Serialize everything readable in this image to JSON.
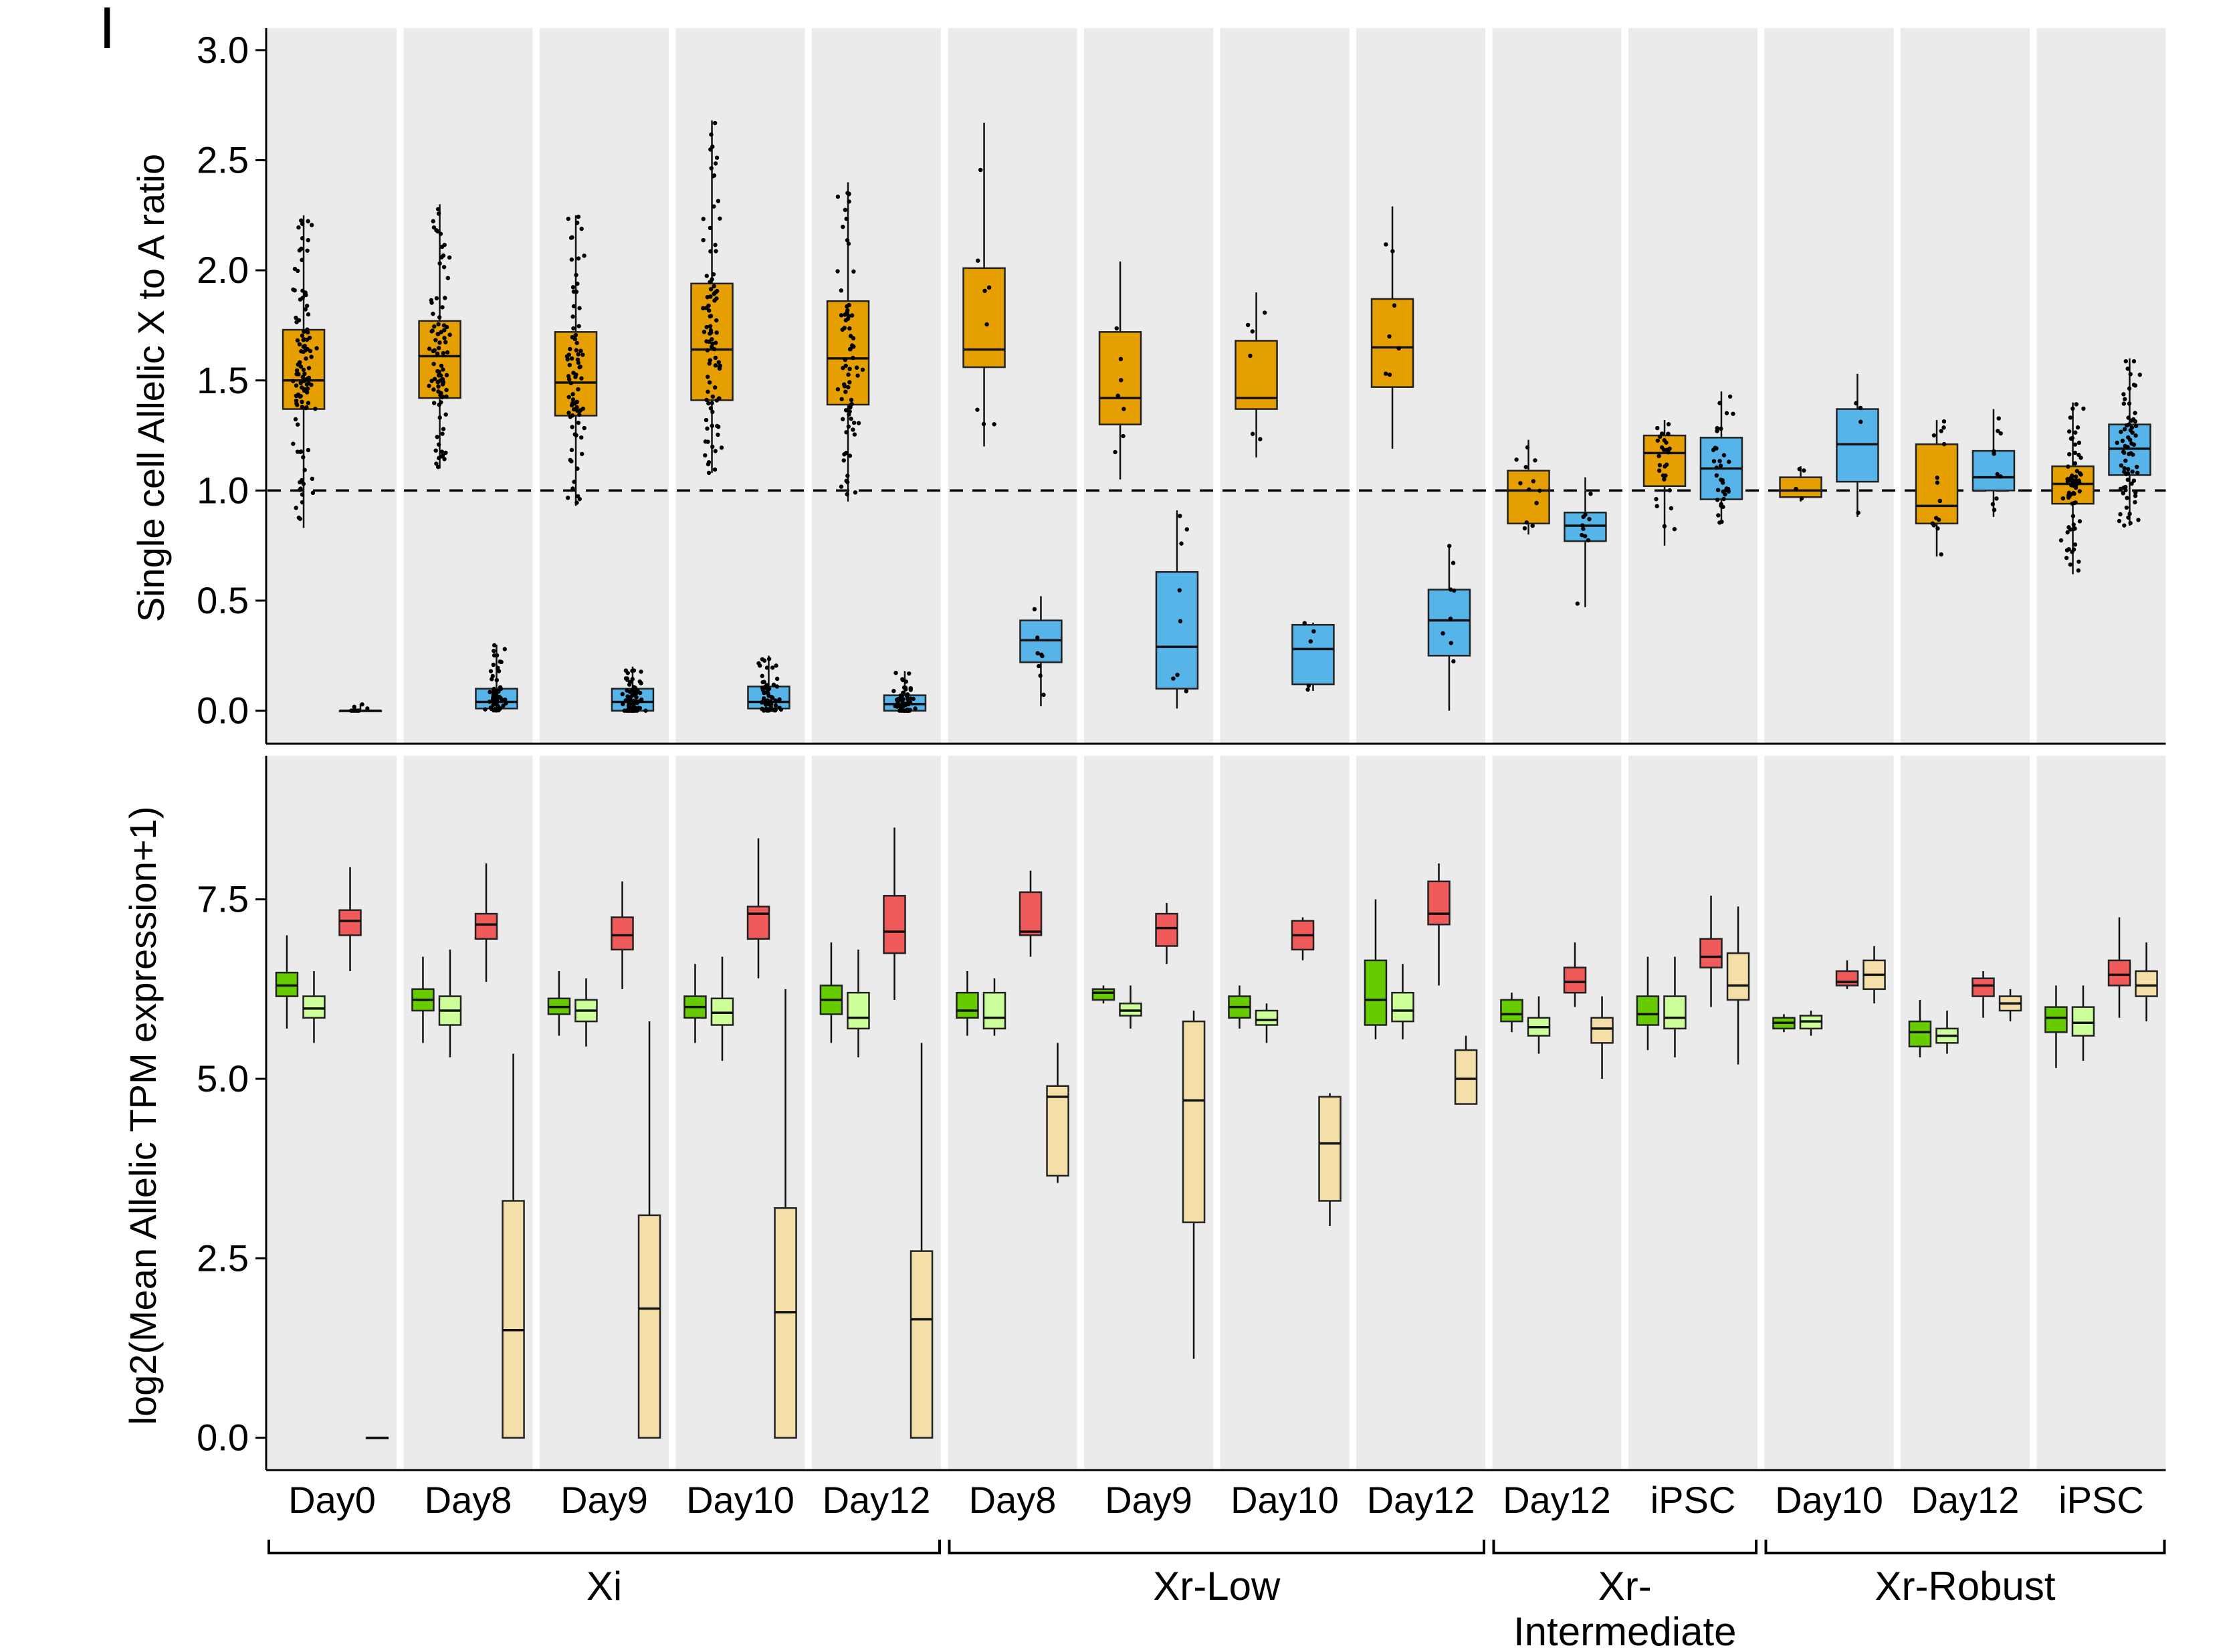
{
  "panel_label": "I",
  "colors": {
    "panel_bg": "#ebebeb",
    "xi_box": "#e69f00",
    "xa_box": "#56b4e9",
    "gene_green_dark": "#66cc00",
    "gene_green_light": "#ccff99",
    "gene_red": "#f05a5a",
    "gene_tan": "#f5dfa8"
  },
  "groups": [
    {
      "label": "Xi",
      "lines": [
        "Xi"
      ],
      "first_panel": 0,
      "last_panel": 4
    },
    {
      "label": "Xr-Low",
      "lines": [
        "Xr-Low"
      ],
      "first_panel": 5,
      "last_panel": 8
    },
    {
      "label": "Xr-Intermediate",
      "lines": [
        "Xr-",
        "Intermediate"
      ],
      "first_panel": 9,
      "last_panel": 10
    },
    {
      "label": "Xr-Robust",
      "lines": [
        "Xr-Robust"
      ],
      "first_panel": 11,
      "last_panel": 13
    }
  ],
  "chart_data": [
    {
      "type": "box",
      "ylabel": "Single cell Allelic X to A ratio",
      "ylim": [
        -0.15,
        3.1
      ],
      "yticks": [
        "0.0",
        "0.5",
        "1.0",
        "1.5",
        "2.0",
        "2.5",
        "3.0"
      ],
      "reference_line": 1.0,
      "grid": false,
      "categories": [
        "Day0",
        "Day8",
        "Day9",
        "Day10",
        "Day12",
        "Day8",
        "Day9",
        "Day10",
        "Day12",
        "Day12",
        "iPSC",
        "Day10",
        "Day12",
        "iPSC"
      ],
      "series": [
        {
          "color_key": "xi_box",
          "boxes": [
            {
              "whislo": 0.83,
              "q1": 1.37,
              "med": 1.5,
              "q3": 1.73,
              "whishi": 2.25,
              "n": 110
            },
            {
              "whislo": 1.1,
              "q1": 1.42,
              "med": 1.61,
              "q3": 1.77,
              "whishi": 2.3,
              "n": 90
            },
            {
              "whislo": 0.93,
              "q1": 1.34,
              "med": 1.49,
              "q3": 1.72,
              "whishi": 2.25,
              "n": 80
            },
            {
              "whislo": 1.08,
              "q1": 1.41,
              "med": 1.64,
              "q3": 1.94,
              "whishi": 2.68,
              "n": 90
            },
            {
              "whislo": 0.95,
              "q1": 1.39,
              "med": 1.6,
              "q3": 1.86,
              "whishi": 2.4,
              "n": 75
            },
            {
              "whislo": 1.2,
              "q1": 1.56,
              "med": 1.64,
              "q3": 2.01,
              "whishi": 2.67,
              "n": 8
            },
            {
              "whislo": 1.05,
              "q1": 1.3,
              "med": 1.42,
              "q3": 1.72,
              "whishi": 2.04,
              "n": 7
            },
            {
              "whislo": 1.15,
              "q1": 1.37,
              "med": 1.42,
              "q3": 1.68,
              "whishi": 1.9,
              "n": 6
            },
            {
              "whislo": 1.19,
              "q1": 1.47,
              "med": 1.65,
              "q3": 1.87,
              "whishi": 2.29,
              "n": 7
            },
            {
              "whislo": 0.8,
              "q1": 0.85,
              "med": 1.0,
              "q3": 1.09,
              "whishi": 1.23,
              "n": 12
            },
            {
              "whislo": 0.75,
              "q1": 1.02,
              "med": 1.17,
              "q3": 1.25,
              "whishi": 1.32,
              "n": 30
            },
            {
              "whislo": 0.95,
              "q1": 0.97,
              "med": 1.0,
              "q3": 1.06,
              "whishi": 1.11,
              "n": 4
            },
            {
              "whislo": 0.7,
              "q1": 0.85,
              "med": 0.93,
              "q3": 1.21,
              "whishi": 1.32,
              "n": 14
            },
            {
              "whislo": 0.62,
              "q1": 0.94,
              "med": 1.03,
              "q3": 1.11,
              "whishi": 1.4,
              "n": 70
            }
          ]
        },
        {
          "color_key": "xa_box",
          "boxes": [
            {
              "whislo": 0.0,
              "q1": 0.0,
              "med": 0.0,
              "q3": 0.0,
              "whishi": 0.03,
              "n": 10
            },
            {
              "whislo": 0.0,
              "q1": 0.01,
              "med": 0.04,
              "q3": 0.1,
              "whishi": 0.3,
              "n": 70
            },
            {
              "whislo": 0.0,
              "q1": 0.0,
              "med": 0.04,
              "q3": 0.1,
              "whishi": 0.2,
              "n": 70
            },
            {
              "whislo": 0.0,
              "q1": 0.01,
              "med": 0.04,
              "q3": 0.11,
              "whishi": 0.25,
              "n": 65
            },
            {
              "whislo": 0.0,
              "q1": 0.0,
              "med": 0.03,
              "q3": 0.07,
              "whishi": 0.18,
              "n": 55
            },
            {
              "whislo": 0.02,
              "q1": 0.22,
              "med": 0.32,
              "q3": 0.41,
              "whishi": 0.52,
              "n": 8
            },
            {
              "whislo": 0.01,
              "q1": 0.1,
              "med": 0.29,
              "q3": 0.63,
              "whishi": 0.91,
              "n": 8
            },
            {
              "whislo": 0.09,
              "q1": 0.12,
              "med": 0.28,
              "q3": 0.39,
              "whishi": 0.4,
              "n": 5
            },
            {
              "whislo": 0.0,
              "q1": 0.25,
              "med": 0.41,
              "q3": 0.55,
              "whishi": 0.75,
              "n": 8
            },
            {
              "whislo": 0.47,
              "q1": 0.77,
              "med": 0.84,
              "q3": 0.9,
              "whishi": 1.06,
              "n": 10
            },
            {
              "whislo": 0.85,
              "q1": 0.96,
              "med": 1.1,
              "q3": 1.24,
              "whishi": 1.45,
              "n": 35
            },
            {
              "whislo": 0.88,
              "q1": 1.04,
              "med": 1.21,
              "q3": 1.37,
              "whishi": 1.53,
              "n": 4
            },
            {
              "whislo": 0.88,
              "q1": 1.0,
              "med": 1.06,
              "q3": 1.18,
              "whishi": 1.37,
              "n": 10
            },
            {
              "whislo": 0.84,
              "q1": 1.07,
              "med": 1.19,
              "q3": 1.3,
              "whishi": 1.6,
              "n": 70
            }
          ]
        }
      ]
    },
    {
      "type": "box",
      "ylabel": "log2(Mean Allelic TPM expression+1)",
      "ylim": [
        -0.45,
        9.5
      ],
      "yticks": [
        "0.0",
        "2.5",
        "5.0",
        "7.5"
      ],
      "grid": false,
      "categories": [
        "Day0",
        "Day8",
        "Day9",
        "Day10",
        "Day12",
        "Day8",
        "Day9",
        "Day10",
        "Day12",
        "Day12",
        "iPSC",
        "Day10",
        "Day12",
        "iPSC"
      ],
      "series": [
        {
          "color_key": "gene_green_dark",
          "boxes": [
            {
              "whislo": 5.7,
              "q1": 6.15,
              "med": 6.3,
              "q3": 6.48,
              "whishi": 7.0
            },
            {
              "whislo": 5.5,
              "q1": 5.95,
              "med": 6.1,
              "q3": 6.25,
              "whishi": 6.7
            },
            {
              "whislo": 5.6,
              "q1": 5.9,
              "med": 6.0,
              "q3": 6.12,
              "whishi": 6.5
            },
            {
              "whislo": 5.5,
              "q1": 5.85,
              "med": 6.0,
              "q3": 6.15,
              "whishi": 6.6
            },
            {
              "whislo": 5.5,
              "q1": 5.9,
              "med": 6.1,
              "q3": 6.3,
              "whishi": 6.9
            },
            {
              "whislo": 5.6,
              "q1": 5.85,
              "med": 5.95,
              "q3": 6.2,
              "whishi": 6.5
            },
            {
              "whislo": 6.05,
              "q1": 6.1,
              "med": 6.2,
              "q3": 6.25,
              "whishi": 6.3
            },
            {
              "whislo": 5.7,
              "q1": 5.85,
              "med": 6.0,
              "q3": 6.15,
              "whishi": 6.3
            },
            {
              "whislo": 5.55,
              "q1": 5.75,
              "med": 6.1,
              "q3": 6.65,
              "whishi": 7.5
            },
            {
              "whislo": 5.65,
              "q1": 5.8,
              "med": 5.9,
              "q3": 6.1,
              "whishi": 6.2
            },
            {
              "whislo": 5.4,
              "q1": 5.75,
              "med": 5.9,
              "q3": 6.15,
              "whishi": 6.7
            },
            {
              "whislo": 5.65,
              "q1": 5.7,
              "med": 5.78,
              "q3": 5.85,
              "whishi": 5.9
            },
            {
              "whislo": 5.3,
              "q1": 5.45,
              "med": 5.65,
              "q3": 5.8,
              "whishi": 6.1
            },
            {
              "whislo": 5.15,
              "q1": 5.65,
              "med": 5.85,
              "q3": 6.0,
              "whishi": 6.3
            }
          ]
        },
        {
          "color_key": "gene_green_light",
          "boxes": [
            {
              "whislo": 5.5,
              "q1": 5.85,
              "med": 5.98,
              "q3": 6.15,
              "whishi": 6.5
            },
            {
              "whislo": 5.3,
              "q1": 5.75,
              "med": 5.95,
              "q3": 6.15,
              "whishi": 6.8
            },
            {
              "whislo": 5.45,
              "q1": 5.8,
              "med": 5.95,
              "q3": 6.1,
              "whishi": 6.4
            },
            {
              "whislo": 5.25,
              "q1": 5.75,
              "med": 5.92,
              "q3": 6.12,
              "whishi": 6.7
            },
            {
              "whislo": 5.3,
              "q1": 5.7,
              "med": 5.85,
              "q3": 6.2,
              "whishi": 6.8
            },
            {
              "whislo": 5.6,
              "q1": 5.7,
              "med": 5.85,
              "q3": 6.2,
              "whishi": 6.4
            },
            {
              "whislo": 5.7,
              "q1": 5.88,
              "med": 5.95,
              "q3": 6.05,
              "whishi": 6.3
            },
            {
              "whislo": 5.5,
              "q1": 5.75,
              "med": 5.82,
              "q3": 5.95,
              "whishi": 6.05
            },
            {
              "whislo": 5.55,
              "q1": 5.8,
              "med": 5.95,
              "q3": 6.2,
              "whishi": 6.6
            },
            {
              "whislo": 5.35,
              "q1": 5.6,
              "med": 5.72,
              "q3": 5.85,
              "whishi": 6.15
            },
            {
              "whislo": 5.3,
              "q1": 5.7,
              "med": 5.85,
              "q3": 6.15,
              "whishi": 6.7
            },
            {
              "whislo": 5.6,
              "q1": 5.7,
              "med": 5.8,
              "q3": 5.88,
              "whishi": 5.95
            },
            {
              "whislo": 5.35,
              "q1": 5.5,
              "med": 5.6,
              "q3": 5.7,
              "whishi": 5.95
            },
            {
              "whislo": 5.25,
              "q1": 5.6,
              "med": 5.78,
              "q3": 6.0,
              "whishi": 6.3
            }
          ]
        },
        {
          "color_key": "gene_red",
          "boxes": [
            {
              "whislo": 6.5,
              "q1": 7.0,
              "med": 7.2,
              "q3": 7.35,
              "whishi": 7.95
            },
            {
              "whislo": 6.35,
              "q1": 6.95,
              "med": 7.15,
              "q3": 7.3,
              "whishi": 8.0
            },
            {
              "whislo": 6.25,
              "q1": 6.8,
              "med": 7.0,
              "q3": 7.25,
              "whishi": 7.75
            },
            {
              "whislo": 6.4,
              "q1": 6.95,
              "med": 7.3,
              "q3": 7.4,
              "whishi": 8.35
            },
            {
              "whislo": 6.1,
              "q1": 6.75,
              "med": 7.05,
              "q3": 7.55,
              "whishi": 8.5
            },
            {
              "whislo": 6.7,
              "q1": 7.0,
              "med": 7.05,
              "q3": 7.6,
              "whishi": 7.9
            },
            {
              "whislo": 6.6,
              "q1": 6.85,
              "med": 7.1,
              "q3": 7.3,
              "whishi": 7.45
            },
            {
              "whislo": 6.65,
              "q1": 6.8,
              "med": 7.0,
              "q3": 7.2,
              "whishi": 7.25
            },
            {
              "whislo": 6.3,
              "q1": 7.15,
              "med": 7.3,
              "q3": 7.75,
              "whishi": 8.0
            },
            {
              "whislo": 6.0,
              "q1": 6.2,
              "med": 6.35,
              "q3": 6.55,
              "whishi": 6.9
            },
            {
              "whislo": 6.0,
              "q1": 6.55,
              "med": 6.7,
              "q3": 6.95,
              "whishi": 7.55
            },
            {
              "whislo": 6.25,
              "q1": 6.3,
              "med": 6.35,
              "q3": 6.5,
              "whishi": 6.65
            },
            {
              "whislo": 5.85,
              "q1": 6.15,
              "med": 6.3,
              "q3": 6.4,
              "whishi": 6.5
            },
            {
              "whislo": 5.85,
              "q1": 6.3,
              "med": 6.45,
              "q3": 6.65,
              "whishi": 7.25
            }
          ]
        },
        {
          "color_key": "gene_tan",
          "boxes": [
            {
              "whislo": 0.0,
              "q1": 0.0,
              "med": 0.0,
              "q3": 0.0,
              "whishi": 0.0
            },
            {
              "whislo": 0.0,
              "q1": 0.0,
              "med": 1.5,
              "q3": 3.3,
              "whishi": 5.35
            },
            {
              "whislo": 0.0,
              "q1": 0.0,
              "med": 1.8,
              "q3": 3.1,
              "whishi": 5.8
            },
            {
              "whislo": 0.0,
              "q1": 0.0,
              "med": 1.75,
              "q3": 3.2,
              "whishi": 6.25
            },
            {
              "whislo": 0.0,
              "q1": 0.0,
              "med": 1.65,
              "q3": 2.6,
              "whishi": 5.5
            },
            {
              "whislo": 3.55,
              "q1": 3.65,
              "med": 4.75,
              "q3": 4.9,
              "whishi": 5.5
            },
            {
              "whislo": 1.1,
              "q1": 3.0,
              "med": 4.7,
              "q3": 5.8,
              "whishi": 5.95
            },
            {
              "whislo": 2.95,
              "q1": 3.3,
              "med": 4.1,
              "q3": 4.75,
              "whishi": 4.8
            },
            {
              "whislo": 4.65,
              "q1": 4.65,
              "med": 5.0,
              "q3": 5.4,
              "whishi": 5.6
            },
            {
              "whislo": 5.0,
              "q1": 5.5,
              "med": 5.7,
              "q3": 5.85,
              "whishi": 6.15
            },
            {
              "whislo": 5.2,
              "q1": 6.1,
              "med": 6.3,
              "q3": 6.75,
              "whishi": 7.4
            },
            {
              "whislo": 6.05,
              "q1": 6.25,
              "med": 6.45,
              "q3": 6.65,
              "whishi": 6.85
            },
            {
              "whislo": 5.8,
              "q1": 5.95,
              "med": 6.05,
              "q3": 6.15,
              "whishi": 6.25
            },
            {
              "whislo": 5.8,
              "q1": 6.15,
              "med": 6.3,
              "q3": 6.5,
              "whishi": 6.9
            }
          ]
        }
      ]
    }
  ]
}
